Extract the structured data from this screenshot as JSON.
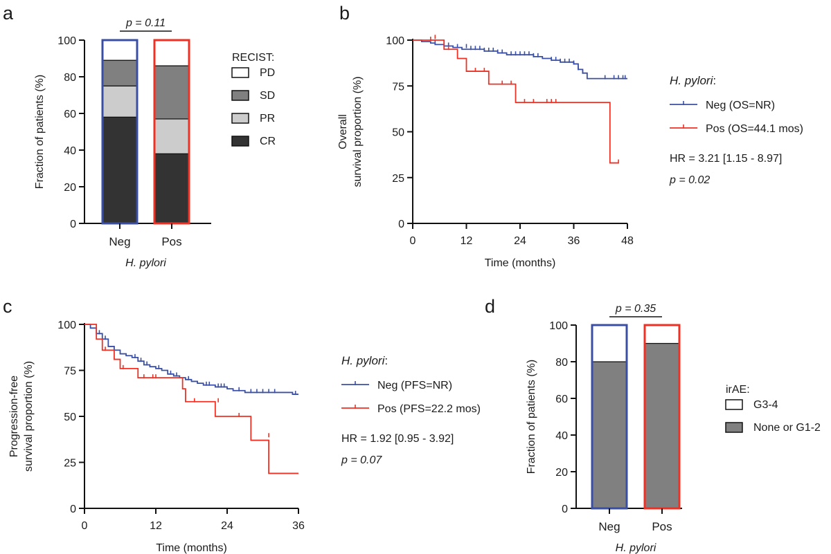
{
  "colors": {
    "neg": "#3a4fa3",
    "pos": "#ee3124",
    "axis": "#111111",
    "CR": "#333333",
    "PR": "#cccccc",
    "SD": "#808080",
    "PD": "#ffffff",
    "G1_2": "#808080",
    "G3_4": "#ffffff"
  },
  "chart_data": [
    {
      "type": "bar",
      "stacked": true,
      "panel": "a",
      "categories": [
        "Neg",
        "Pos"
      ],
      "xlabel": "H. pylori",
      "ylabel": "Fraction of patients (%)",
      "ylim": [
        0,
        100
      ],
      "yticks": [
        0,
        20,
        40,
        60,
        80,
        100
      ],
      "legend_title": "RECIST:",
      "legend_position": "right",
      "series": [
        {
          "name": "CR",
          "values": [
            58,
            38
          ]
        },
        {
          "name": "PR",
          "values": [
            17,
            19
          ]
        },
        {
          "name": "SD",
          "values": [
            14,
            29
          ]
        },
        {
          "name": "PD",
          "values": [
            11,
            14
          ]
        }
      ],
      "legend_order": [
        "PD",
        "SD",
        "PR",
        "CR"
      ],
      "annotation": "p = 0.11"
    },
    {
      "type": "line",
      "subtype": "kaplan-meier",
      "panel": "b",
      "xlabel": "Time (months)",
      "ylabel": [
        "Overall",
        "survival proportion (%)"
      ],
      "xlim": [
        0,
        48
      ],
      "xticks": [
        0,
        12,
        24,
        36,
        48
      ],
      "ylim": [
        0,
        100
      ],
      "yticks": [
        0,
        25,
        50,
        75,
        100
      ],
      "legend_title": "H. pylori",
      "legend_position": "right",
      "series": [
        {
          "name": "Neg (OS=NR)",
          "steps": [
            [
              0,
              100
            ],
            [
              2,
              99.2
            ],
            [
              4,
              98.4
            ],
            [
              5,
              97.6
            ],
            [
              7,
              96.8
            ],
            [
              9,
              96
            ],
            [
              11,
              95
            ],
            [
              16,
              94
            ],
            [
              19,
              93
            ],
            [
              21,
              92
            ],
            [
              27,
              91
            ],
            [
              29,
              90
            ],
            [
              31,
              89
            ],
            [
              33,
              88
            ],
            [
              36,
              87
            ],
            [
              37,
              84
            ],
            [
              38,
              82
            ],
            [
              39,
              79
            ],
            [
              48,
              79
            ]
          ],
          "censors": [
            [
              5,
              98.4
            ],
            [
              7,
              97.6
            ],
            [
              8,
              96.8
            ],
            [
              10,
              96
            ],
            [
              12,
              96
            ],
            [
              13,
              95
            ],
            [
              14,
              95
            ],
            [
              15,
              95
            ],
            [
              16,
              94
            ],
            [
              17,
              94
            ],
            [
              18,
              94
            ],
            [
              19,
              93
            ],
            [
              20,
              93
            ],
            [
              22,
              92
            ],
            [
              23,
              92
            ],
            [
              24,
              92
            ],
            [
              25,
              92
            ],
            [
              26,
              92
            ],
            [
              27,
              91
            ],
            [
              28,
              91
            ],
            [
              31,
              89
            ],
            [
              32,
              89
            ],
            [
              33,
              88
            ],
            [
              34,
              88
            ],
            [
              35,
              88
            ],
            [
              36,
              87
            ],
            [
              37,
              84
            ],
            [
              38,
              82
            ],
            [
              43,
              79
            ],
            [
              45,
              79
            ],
            [
              46,
              79
            ],
            [
              47,
              79
            ],
            [
              47.5,
              79
            ]
          ]
        },
        {
          "name": "Pos (OS=44.1 mos)",
          "steps": [
            [
              0,
              100
            ],
            [
              6,
              100
            ],
            [
              7,
              95
            ],
            [
              10,
              90
            ],
            [
              12,
              83
            ],
            [
              17,
              76
            ],
            [
              23,
              66
            ],
            [
              44,
              66
            ],
            [
              44.1,
              33
            ],
            [
              46,
              33
            ]
          ],
          "censors": [
            [
              4,
              100
            ],
            [
              5,
              101
            ],
            [
              8,
              95
            ],
            [
              14,
              83
            ],
            [
              16,
              83
            ],
            [
              20,
              76
            ],
            [
              22,
              76
            ],
            [
              25,
              66
            ],
            [
              27,
              66
            ],
            [
              30,
              66
            ],
            [
              31,
              66
            ],
            [
              32,
              66
            ],
            [
              46,
              33
            ]
          ]
        }
      ],
      "annotations": [
        "HR = 3.21 [1.15 - 8.97]",
        "p = 0.02"
      ]
    },
    {
      "type": "line",
      "subtype": "kaplan-meier",
      "panel": "c",
      "xlabel": "Time (months)",
      "ylabel": [
        "Progression-free",
        "survival proportion (%)"
      ],
      "xlim": [
        0,
        36
      ],
      "xticks": [
        0,
        12,
        24,
        36
      ],
      "ylim": [
        0,
        100
      ],
      "yticks": [
        0,
        25,
        50,
        75,
        100
      ],
      "legend_title": "H. pylori",
      "legend_position": "right",
      "series": [
        {
          "name": "Neg (PFS=NR)",
          "steps": [
            [
              0,
              100
            ],
            [
              1,
              98
            ],
            [
              2,
              95
            ],
            [
              3,
              92
            ],
            [
              4,
              88
            ],
            [
              5,
              86
            ],
            [
              6,
              84
            ],
            [
              7,
              83
            ],
            [
              8,
              82
            ],
            [
              9,
              80
            ],
            [
              10,
              78
            ],
            [
              11,
              77
            ],
            [
              12,
              76
            ],
            [
              13,
              75
            ],
            [
              14,
              73
            ],
            [
              15,
              72
            ],
            [
              16,
              71
            ],
            [
              17,
              70
            ],
            [
              18,
              69
            ],
            [
              19,
              68
            ],
            [
              20,
              67
            ],
            [
              22,
              66
            ],
            [
              24,
              65
            ],
            [
              25,
              64
            ],
            [
              27,
              63
            ],
            [
              35,
              62
            ],
            [
              36,
              62
            ]
          ],
          "censors": [
            [
              2.5,
              95
            ],
            [
              3.5,
              92
            ],
            [
              8.5,
              82
            ],
            [
              9.5,
              80
            ],
            [
              10.5,
              78
            ],
            [
              12.5,
              76
            ],
            [
              14.5,
              73
            ],
            [
              15.5,
              72
            ],
            [
              17.5,
              70
            ],
            [
              20.5,
              67
            ],
            [
              21,
              67
            ],
            [
              22.5,
              66
            ],
            [
              23,
              66
            ],
            [
              23.5,
              66
            ],
            [
              26,
              64
            ],
            [
              28,
              63
            ],
            [
              29,
              63
            ],
            [
              30,
              63
            ],
            [
              31,
              63
            ],
            [
              32,
              63
            ],
            [
              35.5,
              62
            ]
          ]
        },
        {
          "name": "Pos (PFS=22.2 mos)",
          "steps": [
            [
              0,
              100
            ],
            [
              2,
              92
            ],
            [
              3,
              86
            ],
            [
              5,
              81
            ],
            [
              6,
              76
            ],
            [
              9,
              71
            ],
            [
              16.5,
              65
            ],
            [
              17,
              58
            ],
            [
              22,
              50
            ],
            [
              28,
              37
            ],
            [
              31,
              19
            ],
            [
              36,
              19
            ]
          ],
          "censors": [
            [
              3.5,
              86
            ],
            [
              6.5,
              76
            ],
            [
              10,
              71
            ],
            [
              11.5,
              71
            ],
            [
              12,
              71
            ],
            [
              18.5,
              58
            ],
            [
              22.5,
              58
            ],
            [
              26,
              50
            ],
            [
              31,
              39
            ]
          ]
        }
      ],
      "annotations": [
        "HR = 1.92 [0.95 - 3.92]",
        "p = 0.07"
      ]
    },
    {
      "type": "bar",
      "stacked": true,
      "panel": "d",
      "categories": [
        "Neg",
        "Pos"
      ],
      "xlabel": "H. pylori",
      "ylabel": "Fraction of patients (%)",
      "ylim": [
        0,
        100
      ],
      "yticks": [
        0,
        20,
        40,
        60,
        80,
        100
      ],
      "legend_title": "irAE:",
      "legend_position": "right",
      "series": [
        {
          "name": "None or G1-2",
          "values": [
            80,
            90
          ]
        },
        {
          "name": "G3-4",
          "values": [
            20,
            10
          ]
        }
      ],
      "legend_order": [
        "G3-4",
        "None or G1-2"
      ],
      "annotation": "p = 0.35"
    }
  ],
  "panel_labels": {
    "a": "a",
    "b": "b",
    "c": "c",
    "d": "d"
  }
}
